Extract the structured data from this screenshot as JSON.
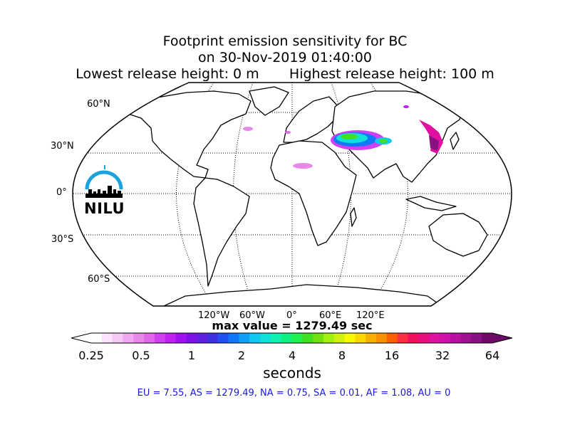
{
  "title": {
    "line1": "Footprint emission sensitivity for BC",
    "line2": "on 30-Nov-2019 01:40:00",
    "line3": "Lowest release height: 0 m       Highest release height: 100 m"
  },
  "map": {
    "projection": "Robinson",
    "lat_labels": [
      "60°N",
      "30°N",
      "0°",
      "30°S",
      "60°S"
    ],
    "lon_labels": [
      "120°W",
      "60°W",
      "0°",
      "60°E",
      "120°E"
    ]
  },
  "logo": {
    "text": "NILU",
    "color": "#1aa3dc"
  },
  "max_value": "max value = 1279.49 sec",
  "colorbar": {
    "ticks": [
      "0.25",
      "0.5",
      "1",
      "2",
      "4",
      "8",
      "16",
      "32",
      "64"
    ],
    "label": "seconds",
    "colors": [
      "#ffffff",
      "#fbe3fb",
      "#f6c8f6",
      "#f0a8f0",
      "#ea88ea",
      "#e068e8",
      "#d040f0",
      "#c020f0",
      "#a010f0",
      "#8010e8",
      "#6020e0",
      "#4030e0",
      "#2050f0",
      "#1078f8",
      "#10a0f8",
      "#10c8f0",
      "#10e0d8",
      "#10f0b0",
      "#10f080",
      "#20f050",
      "#40e020",
      "#70e010",
      "#a0f010",
      "#d0f010",
      "#f8f800",
      "#f8d800",
      "#f8b000",
      "#f89000",
      "#f86000",
      "#f83040",
      "#f01060",
      "#e81080",
      "#e010a0",
      "#d010a8",
      "#b810a0",
      "#a01090",
      "#881080",
      "#700868"
    ],
    "arrow_right_color": "#6a0a66"
  },
  "footer": "EU = 7.55,  AS = 1279.49,  NA = 0.75,  SA = 0.01,  AF = 1.08,  AU = 0"
}
